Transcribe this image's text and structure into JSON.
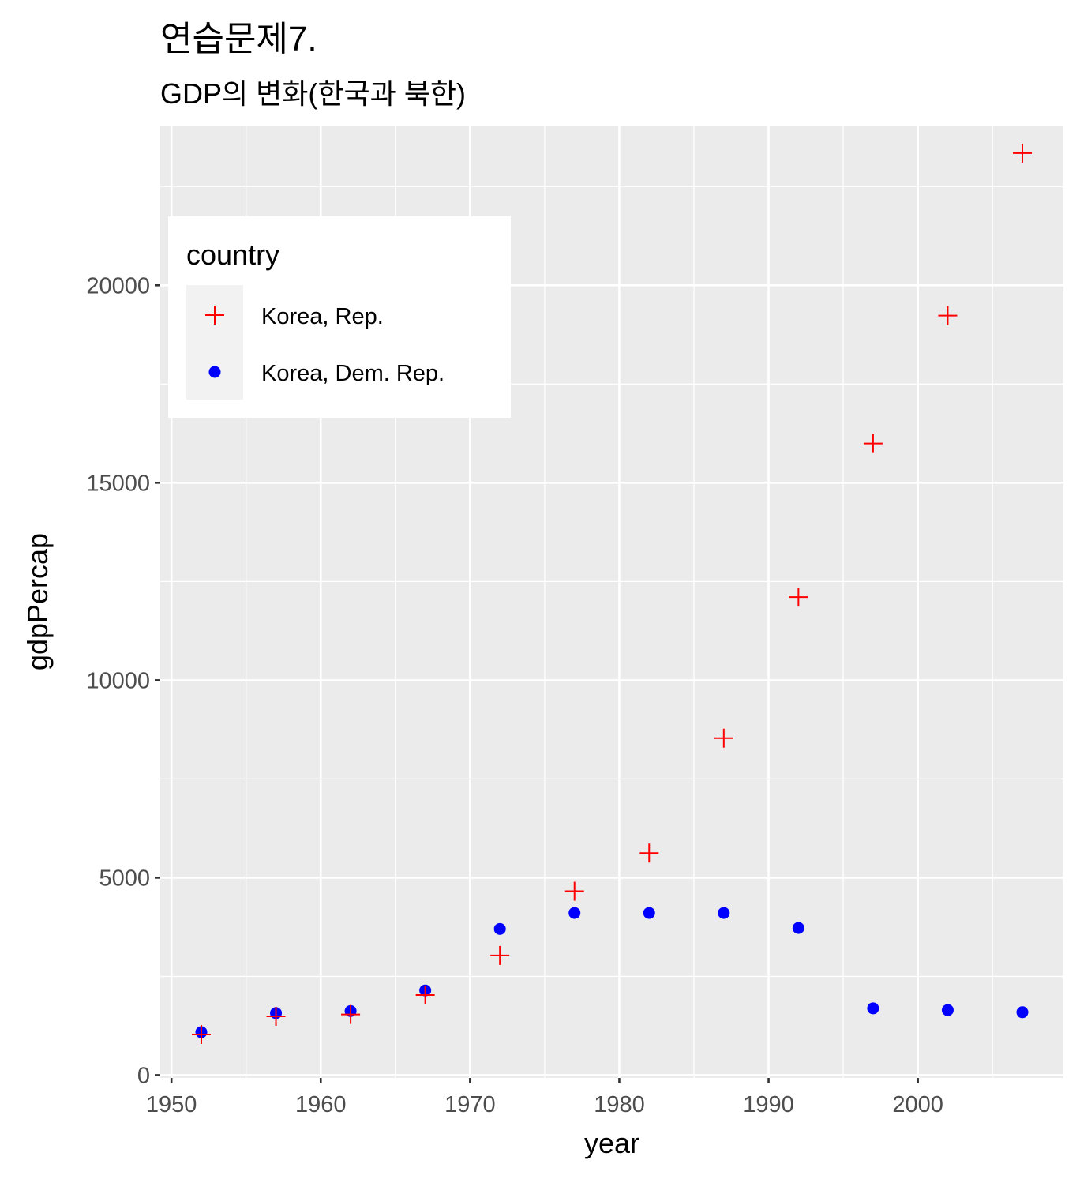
{
  "chart_data": {
    "type": "scatter",
    "title": "연습문제7.",
    "subtitle": "GDP의 변화(한국과 북한)",
    "xlabel": "year",
    "ylabel": "gdpPercap",
    "xlim": [
      1949.25,
      2009.75
    ],
    "ylim": [
      -71,
      24025
    ],
    "x_ticks": [
      1950,
      1960,
      1970,
      1980,
      1990,
      2000
    ],
    "y_ticks": [
      0,
      5000,
      10000,
      15000,
      20000
    ],
    "x_tick_labels": [
      "1950",
      "1960",
      "1970",
      "1980",
      "1990",
      "2000"
    ],
    "y_tick_labels": [
      "0",
      "5000",
      "10000",
      "15000",
      "20000"
    ],
    "grid": true,
    "panel_background": "#ebebeb",
    "legend": {
      "title": "country",
      "position": "top-left inside"
    },
    "x": [
      1952,
      1957,
      1962,
      1967,
      1972,
      1977,
      1982,
      1987,
      1992,
      1997,
      2002,
      2007
    ],
    "series": [
      {
        "name": "Korea, Rep.",
        "color": "#ff0000",
        "shape": "plus",
        "values": [
          1030,
          1488,
          1536,
          2029,
          3031,
          4657,
          5623,
          8533,
          12104,
          15994,
          19234,
          23348
        ]
      },
      {
        "name": "Korea, Dem. Rep.",
        "color": "#0000ff",
        "shape": "circle",
        "values": [
          1088,
          1571,
          1622,
          2144,
          3702,
          4106,
          4107,
          4106,
          3727,
          1690,
          1647,
          1593
        ]
      }
    ]
  }
}
